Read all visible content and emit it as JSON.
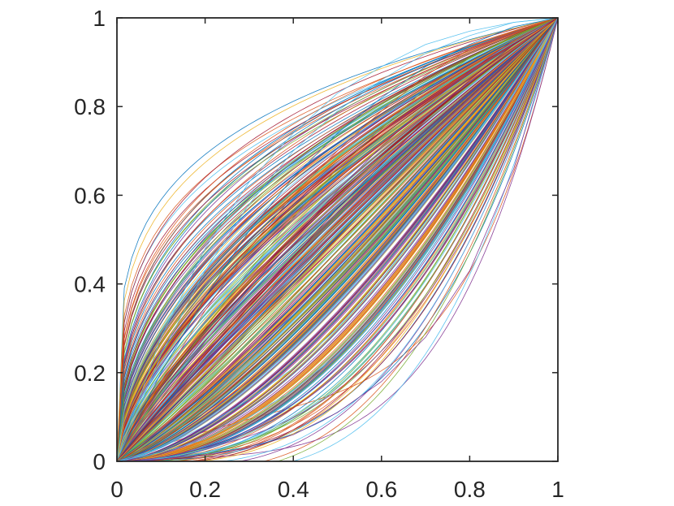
{
  "chart_data": {
    "type": "line",
    "title": "",
    "xlabel": "",
    "ylabel": "",
    "xlim": [
      0,
      1
    ],
    "ylim": [
      0,
      1
    ],
    "x_ticks": [
      "0",
      "0.2",
      "0.4",
      "0.6",
      "0.8",
      "1"
    ],
    "y_ticks": [
      "0",
      "0.2",
      "0.4",
      "0.6",
      "0.8",
      "1"
    ],
    "grid": false,
    "box": true,
    "color_order": [
      "#0072BD",
      "#D95319",
      "#EDB120",
      "#7E2F8E",
      "#77AC30",
      "#4DBEEE",
      "#A2142F"
    ],
    "series_description": "Several hundred monotone curves from (0,0) to (1,1) fanning between convex and concave shapes",
    "series": [
      {
        "color": "#4DBEEE",
        "points": [
          [
            0,
            0
          ],
          [
            0.1,
            0.28
          ],
          [
            0.2,
            0.48
          ],
          [
            0.3,
            0.63
          ],
          [
            0.4,
            0.74
          ],
          [
            0.5,
            0.83
          ],
          [
            0.6,
            0.89
          ],
          [
            0.7,
            0.94
          ],
          [
            0.8,
            0.97
          ],
          [
            0.9,
            0.99
          ],
          [
            1,
            1
          ]
        ]
      },
      {
        "color": "#4DBEEE",
        "points": [
          [
            0,
            0
          ],
          [
            0.1,
            0.24
          ],
          [
            0.2,
            0.43
          ],
          [
            0.3,
            0.58
          ],
          [
            0.4,
            0.7
          ],
          [
            0.5,
            0.79
          ],
          [
            0.6,
            0.86
          ],
          [
            0.7,
            0.92
          ],
          [
            0.8,
            0.96
          ],
          [
            0.9,
            0.99
          ],
          [
            1,
            1
          ]
        ]
      },
      {
        "color": "#0072BD",
        "points": [
          [
            0,
            0
          ],
          [
            0.1,
            0.2
          ],
          [
            0.2,
            0.37
          ],
          [
            0.3,
            0.52
          ],
          [
            0.4,
            0.64
          ],
          [
            0.5,
            0.74
          ],
          [
            0.6,
            0.82
          ],
          [
            0.7,
            0.89
          ],
          [
            0.8,
            0.94
          ],
          [
            0.9,
            0.98
          ],
          [
            1,
            1
          ]
        ]
      },
      {
        "color": "#D95319",
        "points": [
          [
            0,
            0
          ],
          [
            0.1,
            0.18
          ],
          [
            0.2,
            0.34
          ],
          [
            0.3,
            0.48
          ],
          [
            0.4,
            0.6
          ],
          [
            0.5,
            0.7
          ],
          [
            0.6,
            0.79
          ],
          [
            0.7,
            0.87
          ],
          [
            0.8,
            0.93
          ],
          [
            0.9,
            0.97
          ],
          [
            1,
            1
          ]
        ]
      },
      {
        "color": "#77AC30",
        "points": [
          [
            0,
            0
          ],
          [
            0.1,
            0.16
          ],
          [
            0.2,
            0.3
          ],
          [
            0.3,
            0.43
          ],
          [
            0.4,
            0.55
          ],
          [
            0.5,
            0.66
          ],
          [
            0.6,
            0.75
          ],
          [
            0.7,
            0.84
          ],
          [
            0.8,
            0.91
          ],
          [
            0.9,
            0.96
          ],
          [
            1,
            1
          ]
        ]
      },
      {
        "color": "#7E2F8E",
        "points": [
          [
            0,
            0
          ],
          [
            0.1,
            0.14
          ],
          [
            0.2,
            0.27
          ],
          [
            0.3,
            0.39
          ],
          [
            0.4,
            0.5
          ],
          [
            0.5,
            0.61
          ],
          [
            0.6,
            0.71
          ],
          [
            0.7,
            0.8
          ],
          [
            0.8,
            0.88
          ],
          [
            0.9,
            0.95
          ],
          [
            1,
            1
          ]
        ]
      },
      {
        "color": "#A2142F",
        "points": [
          [
            0,
            0
          ],
          [
            0.1,
            0.12
          ],
          [
            0.2,
            0.24
          ],
          [
            0.3,
            0.35
          ],
          [
            0.4,
            0.46
          ],
          [
            0.5,
            0.57
          ],
          [
            0.6,
            0.67
          ],
          [
            0.7,
            0.77
          ],
          [
            0.8,
            0.86
          ],
          [
            0.9,
            0.94
          ],
          [
            1,
            1
          ]
        ]
      },
      {
        "color": "#EDB120",
        "points": [
          [
            0,
            0
          ],
          [
            0.1,
            0.1
          ],
          [
            0.2,
            0.2
          ],
          [
            0.3,
            0.3
          ],
          [
            0.4,
            0.4
          ],
          [
            0.5,
            0.5
          ],
          [
            0.6,
            0.6
          ],
          [
            0.7,
            0.7
          ],
          [
            0.8,
            0.8
          ],
          [
            0.9,
            0.9
          ],
          [
            1,
            1
          ]
        ]
      },
      {
        "color": "#0072BD",
        "points": [
          [
            0,
            0
          ],
          [
            0.1,
            0.07
          ],
          [
            0.2,
            0.15
          ],
          [
            0.3,
            0.24
          ],
          [
            0.4,
            0.33
          ],
          [
            0.5,
            0.43
          ],
          [
            0.6,
            0.54
          ],
          [
            0.7,
            0.65
          ],
          [
            0.8,
            0.76
          ],
          [
            0.9,
            0.88
          ],
          [
            1,
            1
          ]
        ]
      },
      {
        "color": "#D95319",
        "points": [
          [
            0,
            0
          ],
          [
            0.1,
            0.05
          ],
          [
            0.2,
            0.11
          ],
          [
            0.3,
            0.18
          ],
          [
            0.4,
            0.27
          ],
          [
            0.5,
            0.37
          ],
          [
            0.6,
            0.48
          ],
          [
            0.7,
            0.6
          ],
          [
            0.8,
            0.73
          ],
          [
            0.9,
            0.86
          ],
          [
            1,
            1
          ]
        ]
      },
      {
        "color": "#4DBEEE",
        "points": [
          [
            0,
            0
          ],
          [
            0.1,
            0.03
          ],
          [
            0.2,
            0.08
          ],
          [
            0.3,
            0.14
          ],
          [
            0.4,
            0.21
          ],
          [
            0.5,
            0.3
          ],
          [
            0.6,
            0.41
          ],
          [
            0.7,
            0.54
          ],
          [
            0.8,
            0.68
          ],
          [
            0.9,
            0.83
          ],
          [
            1,
            1
          ]
        ]
      },
      {
        "color": "#4DBEEE",
        "points": [
          [
            0,
            0
          ],
          [
            0.1,
            0.02
          ],
          [
            0.2,
            0.05
          ],
          [
            0.3,
            0.1
          ],
          [
            0.4,
            0.16
          ],
          [
            0.5,
            0.24
          ],
          [
            0.6,
            0.34
          ],
          [
            0.7,
            0.47
          ],
          [
            0.8,
            0.62
          ],
          [
            0.9,
            0.8
          ],
          [
            1,
            1
          ]
        ]
      },
      {
        "color": "#7E2F8E",
        "points": [
          [
            0,
            0
          ],
          [
            0.1,
            0.005
          ],
          [
            0.2,
            0.015
          ],
          [
            0.3,
            0.03
          ],
          [
            0.4,
            0.06
          ],
          [
            0.5,
            0.11
          ],
          [
            0.6,
            0.18
          ],
          [
            0.7,
            0.28
          ],
          [
            0.8,
            0.43
          ],
          [
            0.9,
            0.66
          ],
          [
            1,
            1
          ]
        ]
      }
    ]
  }
}
